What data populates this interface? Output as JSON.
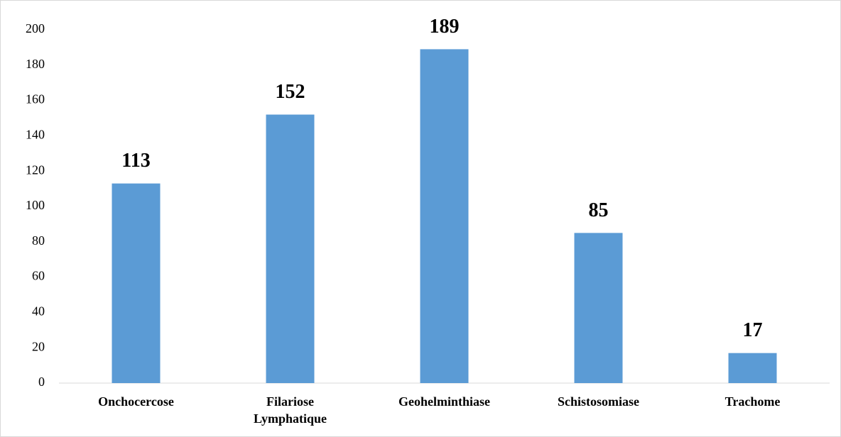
{
  "chart_data": {
    "type": "bar",
    "categories": [
      "Onchocercose",
      "Filariose Lymphatique",
      "Geohelminthiase",
      "Schistosomiase",
      "Trachome"
    ],
    "values": [
      113,
      152,
      189,
      85,
      17
    ],
    "color": "#5b9bd5",
    "ylim": [
      0,
      200
    ],
    "yticks": [
      0,
      20,
      40,
      60,
      80,
      100,
      120,
      140,
      160,
      180,
      200
    ],
    "grid": false
  }
}
